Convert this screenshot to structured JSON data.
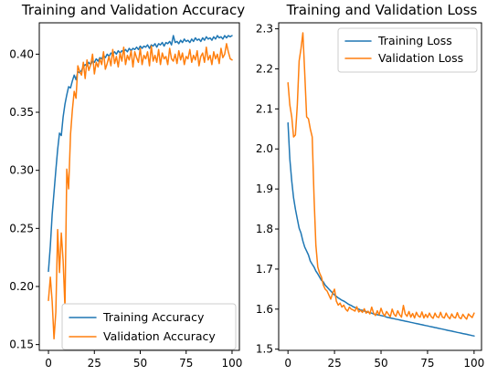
{
  "chart_data": [
    {
      "type": "line",
      "title": "Training and Validation Accuracy",
      "xlabel": "",
      "ylabel": "",
      "xlim": [
        -5,
        104
      ],
      "ylim": [
        0.145,
        0.427
      ],
      "xticks": [
        0,
        25,
        50,
        75,
        100
      ],
      "xtick_labels": [
        "0",
        "25",
        "50",
        "75",
        "100"
      ],
      "yticks": [
        0.15,
        0.2,
        0.25,
        0.3,
        0.35,
        0.4
      ],
      "ytick_labels": [
        "0.15",
        "0.20",
        "0.25",
        "0.30",
        "0.35",
        "0.40"
      ],
      "grid": false,
      "legend_position": "lower right",
      "series": [
        {
          "name": "Training Accuracy",
          "color": "#1f77b4",
          "x": [
            0,
            1,
            2,
            3,
            4,
            5,
            6,
            7,
            8,
            9,
            10,
            11,
            12,
            13,
            14,
            15,
            16,
            17,
            18,
            19,
            20,
            21,
            22,
            23,
            24,
            25,
            26,
            27,
            28,
            29,
            30,
            31,
            32,
            33,
            34,
            35,
            36,
            37,
            38,
            39,
            40,
            41,
            42,
            43,
            44,
            45,
            46,
            47,
            48,
            49,
            50,
            51,
            52,
            53,
            54,
            55,
            56,
            57,
            58,
            59,
            60,
            61,
            62,
            63,
            64,
            65,
            66,
            67,
            68,
            69,
            70,
            71,
            72,
            73,
            74,
            75,
            76,
            77,
            78,
            79,
            80,
            81,
            82,
            83,
            84,
            85,
            86,
            87,
            88,
            89,
            90,
            91,
            92,
            93,
            94,
            95,
            96,
            97,
            98,
            99,
            100
          ],
          "values": [
            0.213,
            0.235,
            0.262,
            0.281,
            0.3,
            0.318,
            0.332,
            0.33,
            0.346,
            0.357,
            0.365,
            0.372,
            0.371,
            0.377,
            0.382,
            0.378,
            0.385,
            0.384,
            0.386,
            0.389,
            0.391,
            0.39,
            0.393,
            0.391,
            0.394,
            0.393,
            0.396,
            0.394,
            0.397,
            0.396,
            0.399,
            0.397,
            0.4,
            0.398,
            0.401,
            0.4,
            0.402,
            0.4,
            0.403,
            0.401,
            0.403,
            0.402,
            0.404,
            0.402,
            0.405,
            0.403,
            0.405,
            0.404,
            0.406,
            0.404,
            0.407,
            0.405,
            0.407,
            0.406,
            0.408,
            0.405,
            0.408,
            0.407,
            0.409,
            0.406,
            0.409,
            0.408,
            0.41,
            0.407,
            0.41,
            0.409,
            0.411,
            0.408,
            0.416,
            0.41,
            0.411,
            0.409,
            0.412,
            0.41,
            0.413,
            0.411,
            0.412,
            0.41,
            0.413,
            0.411,
            0.414,
            0.412,
            0.413,
            0.411,
            0.414,
            0.412,
            0.415,
            0.413,
            0.414,
            0.412,
            0.415,
            0.413,
            0.416,
            0.414,
            0.415,
            0.413,
            0.416,
            0.414,
            0.416,
            0.415,
            0.416
          ]
        },
        {
          "name": "Validation Accuracy",
          "color": "#ff7f0e",
          "x": [
            0,
            1,
            2,
            3,
            4,
            5,
            6,
            7,
            8,
            9,
            10,
            11,
            12,
            13,
            14,
            15,
            16,
            17,
            18,
            19,
            20,
            21,
            22,
            23,
            24,
            25,
            26,
            27,
            28,
            29,
            30,
            31,
            32,
            33,
            34,
            35,
            36,
            37,
            38,
            39,
            40,
            41,
            42,
            43,
            44,
            45,
            46,
            47,
            48,
            49,
            50,
            51,
            52,
            53,
            54,
            55,
            56,
            57,
            58,
            59,
            60,
            61,
            62,
            63,
            64,
            65,
            66,
            67,
            68,
            69,
            70,
            71,
            72,
            73,
            74,
            75,
            76,
            77,
            78,
            79,
            80,
            81,
            82,
            83,
            84,
            85,
            86,
            87,
            88,
            89,
            90,
            91,
            92,
            93,
            94,
            95,
            96,
            97,
            98,
            99,
            100
          ],
          "values": [
            0.188,
            0.208,
            0.187,
            0.155,
            0.178,
            0.249,
            0.212,
            0.246,
            0.222,
            0.182,
            0.301,
            0.284,
            0.331,
            0.352,
            0.368,
            0.362,
            0.39,
            0.385,
            0.382,
            0.393,
            0.379,
            0.395,
            0.386,
            0.391,
            0.4,
            0.383,
            0.393,
            0.389,
            0.396,
            0.391,
            0.402,
            0.387,
            0.392,
            0.398,
            0.39,
            0.404,
            0.392,
            0.398,
            0.389,
            0.401,
            0.394,
            0.406,
            0.391,
            0.399,
            0.395,
            0.403,
            0.389,
            0.402,
            0.397,
            0.393,
            0.405,
            0.391,
            0.399,
            0.396,
            0.402,
            0.39,
            0.407,
            0.394,
            0.399,
            0.393,
            0.404,
            0.391,
            0.401,
            0.396,
            0.398,
            0.391,
            0.405,
            0.396,
            0.394,
            0.4,
            0.392,
            0.403,
            0.395,
            0.401,
            0.391,
            0.398,
            0.396,
            0.404,
            0.393,
            0.399,
            0.395,
            0.403,
            0.39,
            0.398,
            0.401,
            0.393,
            0.406,
            0.395,
            0.399,
            0.391,
            0.402,
            0.396,
            0.4,
            0.392,
            0.405,
            0.397,
            0.4,
            0.409,
            0.402,
            0.396,
            0.395
          ]
        }
      ]
    },
    {
      "type": "line",
      "title": "Training and Validation Loss",
      "xlabel": "",
      "ylabel": "",
      "xlim": [
        -5,
        104
      ],
      "ylim": [
        1.497,
        2.315
      ],
      "xticks": [
        0,
        25,
        50,
        75,
        100
      ],
      "xtick_labels": [
        "0",
        "25",
        "50",
        "75",
        "100"
      ],
      "yticks": [
        1.5,
        1.6,
        1.7,
        1.8,
        1.9,
        2.0,
        2.1,
        2.2,
        2.3
      ],
      "ytick_labels": [
        "1.5",
        "1.6",
        "1.7",
        "1.8",
        "1.9",
        "2.0",
        "2.1",
        "2.2",
        "2.3"
      ],
      "grid": false,
      "legend_position": "upper right",
      "series": [
        {
          "name": "Training Loss",
          "color": "#1f77b4",
          "x": [
            0,
            1,
            2,
            3,
            4,
            5,
            6,
            7,
            8,
            9,
            10,
            11,
            12,
            13,
            14,
            15,
            16,
            17,
            18,
            19,
            20,
            21,
            22,
            23,
            24,
            25,
            26,
            27,
            28,
            29,
            30,
            31,
            32,
            33,
            34,
            35,
            36,
            37,
            38,
            39,
            40,
            41,
            42,
            43,
            44,
            45,
            46,
            47,
            48,
            49,
            50,
            51,
            52,
            53,
            54,
            55,
            56,
            57,
            58,
            59,
            60,
            61,
            62,
            63,
            64,
            65,
            66,
            67,
            68,
            69,
            70,
            71,
            72,
            73,
            74,
            75,
            76,
            77,
            78,
            79,
            80,
            81,
            82,
            83,
            84,
            85,
            86,
            87,
            88,
            89,
            90,
            91,
            92,
            93,
            94,
            95,
            96,
            97,
            98,
            99,
            100
          ],
          "values": [
            2.065,
            1.975,
            1.92,
            1.878,
            1.85,
            1.825,
            1.802,
            1.79,
            1.77,
            1.755,
            1.745,
            1.735,
            1.72,
            1.712,
            1.705,
            1.695,
            1.688,
            1.68,
            1.672,
            1.668,
            1.66,
            1.655,
            1.65,
            1.645,
            1.64,
            1.635,
            1.632,
            1.628,
            1.625,
            1.622,
            1.62,
            1.617,
            1.614,
            1.611,
            1.609,
            1.606,
            1.604,
            1.602,
            1.6,
            1.598,
            1.597,
            1.595,
            1.594,
            1.592,
            1.591,
            1.59,
            1.588,
            1.587,
            1.586,
            1.585,
            1.584,
            1.583,
            1.582,
            1.58,
            1.579,
            1.578,
            1.577,
            1.576,
            1.575,
            1.574,
            1.573,
            1.572,
            1.571,
            1.57,
            1.569,
            1.568,
            1.567,
            1.566,
            1.565,
            1.564,
            1.563,
            1.562,
            1.561,
            1.56,
            1.559,
            1.558,
            1.557,
            1.556,
            1.555,
            1.554,
            1.553,
            1.552,
            1.551,
            1.55,
            1.549,
            1.548,
            1.547,
            1.546,
            1.545,
            1.544,
            1.543,
            1.542,
            1.541,
            1.54,
            1.539,
            1.538,
            1.537,
            1.536,
            1.535,
            1.534,
            1.533
          ]
        },
        {
          "name": "Validation Loss",
          "color": "#ff7f0e",
          "x": [
            0,
            1,
            2,
            3,
            4,
            5,
            6,
            7,
            8,
            9,
            10,
            11,
            12,
            13,
            14,
            15,
            16,
            17,
            18,
            19,
            20,
            21,
            22,
            23,
            24,
            25,
            26,
            27,
            28,
            29,
            30,
            31,
            32,
            33,
            34,
            35,
            36,
            37,
            38,
            39,
            40,
            41,
            42,
            43,
            44,
            45,
            46,
            47,
            48,
            49,
            50,
            51,
            52,
            53,
            54,
            55,
            56,
            57,
            58,
            59,
            60,
            61,
            62,
            63,
            64,
            65,
            66,
            67,
            68,
            69,
            70,
            71,
            72,
            73,
            74,
            75,
            76,
            77,
            78,
            79,
            80,
            81,
            82,
            83,
            84,
            85,
            86,
            87,
            88,
            89,
            90,
            91,
            92,
            93,
            94,
            95,
            96,
            97,
            98,
            99,
            100
          ],
          "values": [
            2.165,
            2.11,
            2.08,
            2.03,
            2.035,
            2.11,
            2.22,
            2.25,
            2.29,
            2.19,
            2.08,
            2.075,
            2.05,
            2.03,
            1.88,
            1.76,
            1.705,
            1.69,
            1.68,
            1.66,
            1.65,
            1.645,
            1.635,
            1.625,
            1.64,
            1.65,
            1.62,
            1.61,
            1.615,
            1.605,
            1.61,
            1.6,
            1.595,
            1.605,
            1.6,
            1.598,
            1.595,
            1.606,
            1.593,
            1.597,
            1.592,
            1.601,
            1.59,
            1.595,
            1.588,
            1.605,
            1.59,
            1.584,
            1.596,
            1.586,
            1.602,
            1.589,
            1.583,
            1.594,
            1.587,
            1.581,
            1.6,
            1.587,
            1.582,
            1.596,
            1.586,
            1.58,
            1.609,
            1.588,
            1.582,
            1.594,
            1.58,
            1.589,
            1.578,
            1.592,
            1.583,
            1.58,
            1.593,
            1.578,
            1.587,
            1.579,
            1.59,
            1.581,
            1.577,
            1.59,
            1.581,
            1.579,
            1.592,
            1.58,
            1.578,
            1.59,
            1.581,
            1.576,
            1.588,
            1.58,
            1.578,
            1.591,
            1.579,
            1.576,
            1.587,
            1.58,
            1.575,
            1.588,
            1.583,
            1.579,
            1.59
          ]
        }
      ]
    }
  ]
}
